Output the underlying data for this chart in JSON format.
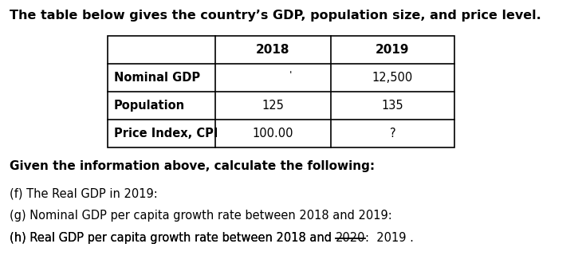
{
  "title": "The table below gives the country’s GDP, population size, and price level.",
  "title_fontsize": 11.5,
  "table_headers": [
    "",
    "2018",
    "2019"
  ],
  "table_rows": [
    [
      "Nominal GDP",
      "",
      "12,500"
    ],
    [
      "Population",
      "125",
      "135"
    ],
    [
      "Price Index, CPI",
      "100.00",
      "?"
    ]
  ],
  "tick_mark": "'",
  "questions_bold_line": "Given the information above, calculate the following:",
  "q1": "(f) The Real GDP in 2019:",
  "q2": "(g) Nominal GDP per capita growth rate between 2018 and 2019:",
  "q3_prefix": "(h) Real GDP per capita growth rate between 2018 and ",
  "q3_strike": "2020",
  "q3_suffix": ":  2019 .",
  "background": "#ffffff",
  "text_color": "#000000"
}
